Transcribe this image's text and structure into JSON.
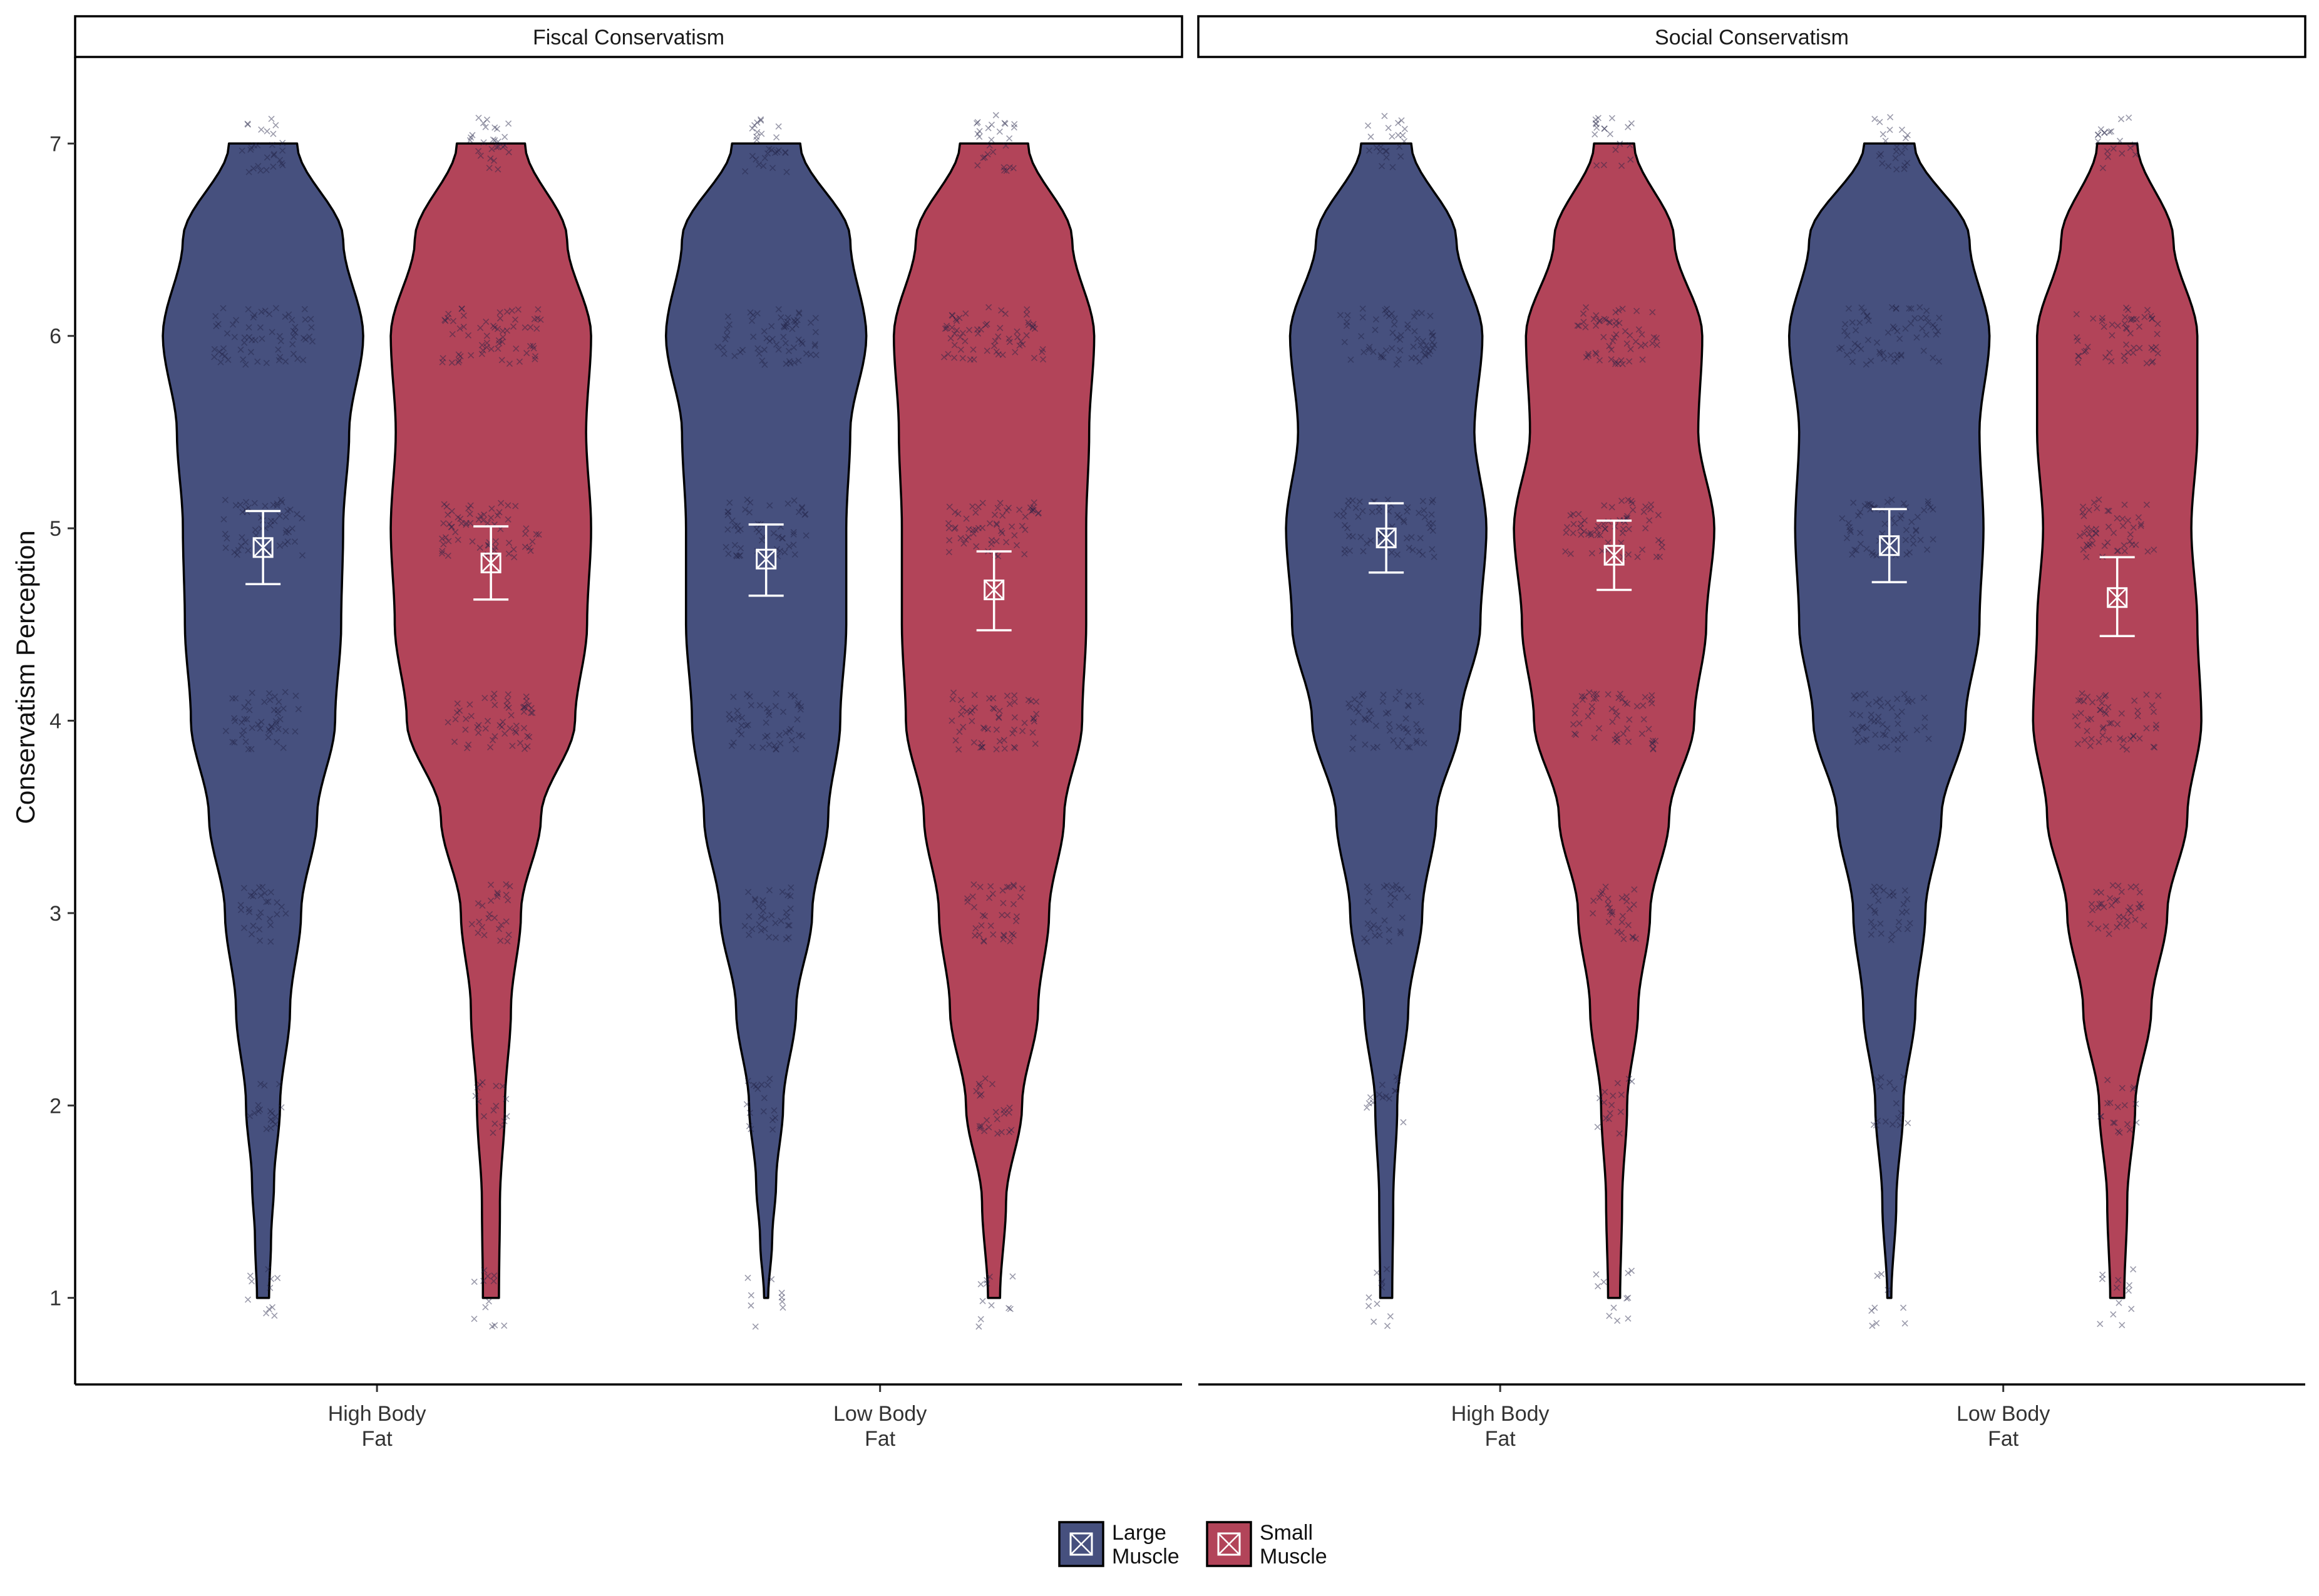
{
  "chart_data": {
    "type": "violin",
    "ylabel": "Conservatism Perception",
    "xlabel": "",
    "ylim": [
      0.55,
      7.45
    ],
    "yticks": [
      1,
      2,
      3,
      4,
      5,
      6,
      7
    ],
    "categories": [
      "High Body\nFat",
      "Low Body\nFat"
    ],
    "legend": {
      "position": "bottom",
      "entries": [
        {
          "label": "Large\nMuscle",
          "color": "#46507e"
        },
        {
          "label": "Small\nMuscle",
          "color": "#b24459"
        }
      ]
    },
    "panels": [
      {
        "title": "Fiscal Conservatism",
        "groups": [
          {
            "category": "High Body\nFat",
            "series": "Large\nMuscle",
            "mean": 4.9,
            "ci_low": 4.71,
            "ci_high": 5.09,
            "density": {
              "1": 0.06,
              "1.3": 0.08,
              "1.6": 0.11,
              "2": 0.17,
              "2.5": 0.27,
              "3": 0.38,
              "3.5": 0.54,
              "4": 0.72,
              "4.5": 0.78,
              "5": 0.8,
              "5.5": 0.86,
              "6": 1.0,
              "6.5": 0.8,
              "7": 0.34
            }
          },
          {
            "category": "High Body\nFat",
            "series": "Small\nMuscle",
            "mean": 4.82,
            "ci_low": 4.63,
            "ci_high": 5.01,
            "density": {
              "1": 0.08,
              "1.5": 0.09,
              "2": 0.14,
              "2.5": 0.2,
              "3": 0.3,
              "3.5": 0.5,
              "4": 0.84,
              "4.5": 0.96,
              "5": 1.0,
              "5.5": 0.95,
              "6": 1.0,
              "6.5": 0.76,
              "7": 0.34
            }
          },
          {
            "category": "Low Body\nFat",
            "series": "Large\nMuscle",
            "mean": 4.84,
            "ci_low": 4.65,
            "ci_high": 5.02,
            "density": {
              "1": 0.02,
              "1.3": 0.06,
              "1.6": 0.1,
              "2": 0.17,
              "2.5": 0.3,
              "3": 0.46,
              "3.5": 0.62,
              "4": 0.74,
              "4.5": 0.8,
              "5": 0.8,
              "5.5": 0.84,
              "6": 1.0,
              "6.5": 0.84,
              "7": 0.34
            }
          },
          {
            "category": "Low Body\nFat",
            "series": "Small\nMuscle",
            "mean": 4.68,
            "ci_low": 4.47,
            "ci_high": 4.88,
            "density": {
              "1": 0.06,
              "1.5": 0.12,
              "2": 0.28,
              "2.5": 0.44,
              "3": 0.55,
              "3.5": 0.7,
              "4": 0.88,
              "4.5": 0.92,
              "5": 0.92,
              "5.5": 0.95,
              "6": 1.0,
              "6.5": 0.78,
              "7": 0.34
            }
          }
        ]
      },
      {
        "title": "Social Conservatism",
        "groups": [
          {
            "category": "High Body\nFat",
            "series": "Large\nMuscle",
            "mean": 4.95,
            "ci_low": 4.77,
            "ci_high": 5.13,
            "density": {
              "1": 0.06,
              "1.5": 0.07,
              "2": 0.11,
              "2.5": 0.22,
              "3": 0.36,
              "3.5": 0.5,
              "4": 0.74,
              "4.5": 0.94,
              "5": 1.0,
              "5.5": 0.88,
              "6": 0.96,
              "6.5": 0.7,
              "7": 0.25
            }
          },
          {
            "category": "High Body\nFat",
            "series": "Small\nMuscle",
            "mean": 4.86,
            "ci_low": 4.68,
            "ci_high": 5.04,
            "density": {
              "1": 0.06,
              "1.5": 0.08,
              "2": 0.13,
              "2.5": 0.24,
              "3": 0.36,
              "3.5": 0.55,
              "4": 0.8,
              "4.5": 0.92,
              "5": 1.0,
              "5.5": 0.84,
              "6": 0.88,
              "6.5": 0.6,
              "7": 0.2
            }
          },
          {
            "category": "Low Body\nFat",
            "series": "Large\nMuscle",
            "mean": 4.91,
            "ci_low": 4.72,
            "ci_high": 5.1,
            "density": {
              "1": 0.02,
              "1.5": 0.07,
              "2": 0.14,
              "2.5": 0.26,
              "3": 0.36,
              "3.5": 0.52,
              "4": 0.76,
              "4.5": 0.9,
              "5": 0.94,
              "5.5": 0.9,
              "6": 1.0,
              "6.5": 0.8,
              "7": 0.25
            }
          },
          {
            "category": "Low Body\nFat",
            "series": "Small\nMuscle",
            "mean": 4.64,
            "ci_low": 4.44,
            "ci_high": 4.85,
            "density": {
              "1": 0.07,
              "1.5": 0.1,
              "2": 0.18,
              "2.5": 0.34,
              "3": 0.5,
              "3.5": 0.7,
              "4": 0.84,
              "4.5": 0.8,
              "5": 0.74,
              "5.5": 0.8,
              "6": 0.8,
              "6.5": 0.56,
              "7": 0.2
            }
          }
        ]
      }
    ]
  }
}
